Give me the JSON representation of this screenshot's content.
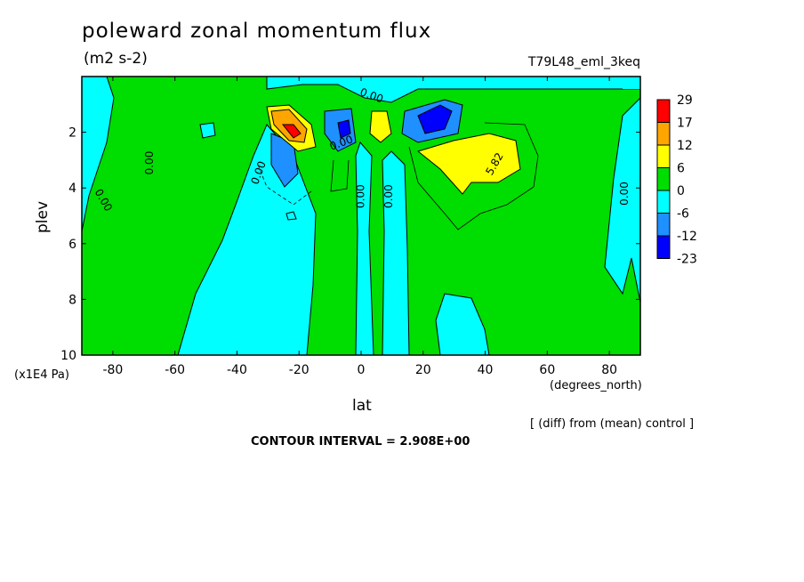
{
  "header": {
    "title": "poleward zonal momentum flux",
    "units": "(m2 s-2)",
    "run_name": "T79L48_eml_3keq"
  },
  "footer": {
    "diff_note": "[ (diff) from (mean) control ]",
    "contour_interval": "CONTOUR INTERVAL = 2.908E+00"
  },
  "chart_data": {
    "type": "heatmap",
    "title": "poleward zonal momentum flux",
    "subtitle": "(m2 s-2)",
    "xlabel": "lat",
    "x_unit_label": "(degrees_north)",
    "ylabel": "plev",
    "y_unit_label": "(x1E4 Pa)",
    "xlim": [
      -90,
      90
    ],
    "ylim": [
      10,
      0
    ],
    "x_ticks": [
      -80,
      -60,
      -40,
      -20,
      0,
      20,
      40,
      60,
      80
    ],
    "y_ticks": [
      2,
      4,
      6,
      8,
      10
    ],
    "colorbar": {
      "levels": [
        29,
        17,
        12,
        6,
        0,
        -6,
        -12,
        -23
      ],
      "colors": [
        "#ff0000",
        "#ffa500",
        "#ffff00",
        "#00dd00",
        "#00ffff",
        "#1e90ff",
        "#0000ff"
      ]
    },
    "contour_labels": [
      {
        "text": "0.00",
        "lat": -67,
        "plev": 3.1,
        "angle": -90
      },
      {
        "text": "0.00",
        "lat": -84,
        "plev": 4.5,
        "angle": 60
      },
      {
        "text": "0.00",
        "lat": -32,
        "plev": 3.5,
        "angle": -70
      },
      {
        "text": "0.00",
        "lat": 3,
        "plev": 0.8,
        "angle": 20
      },
      {
        "text": "0.00",
        "lat": -6,
        "plev": 2.5,
        "angle": -20
      },
      {
        "text": "0.00",
        "lat": 1,
        "plev": 4.3,
        "angle": -90
      },
      {
        "text": "0.00",
        "lat": 10,
        "plev": 4.3,
        "angle": -90
      },
      {
        "text": "5.82",
        "lat": 44,
        "plev": 3.2,
        "angle": -60
      },
      {
        "text": "0.00",
        "lat": 86,
        "plev": 4.2,
        "angle": -90
      }
    ]
  }
}
